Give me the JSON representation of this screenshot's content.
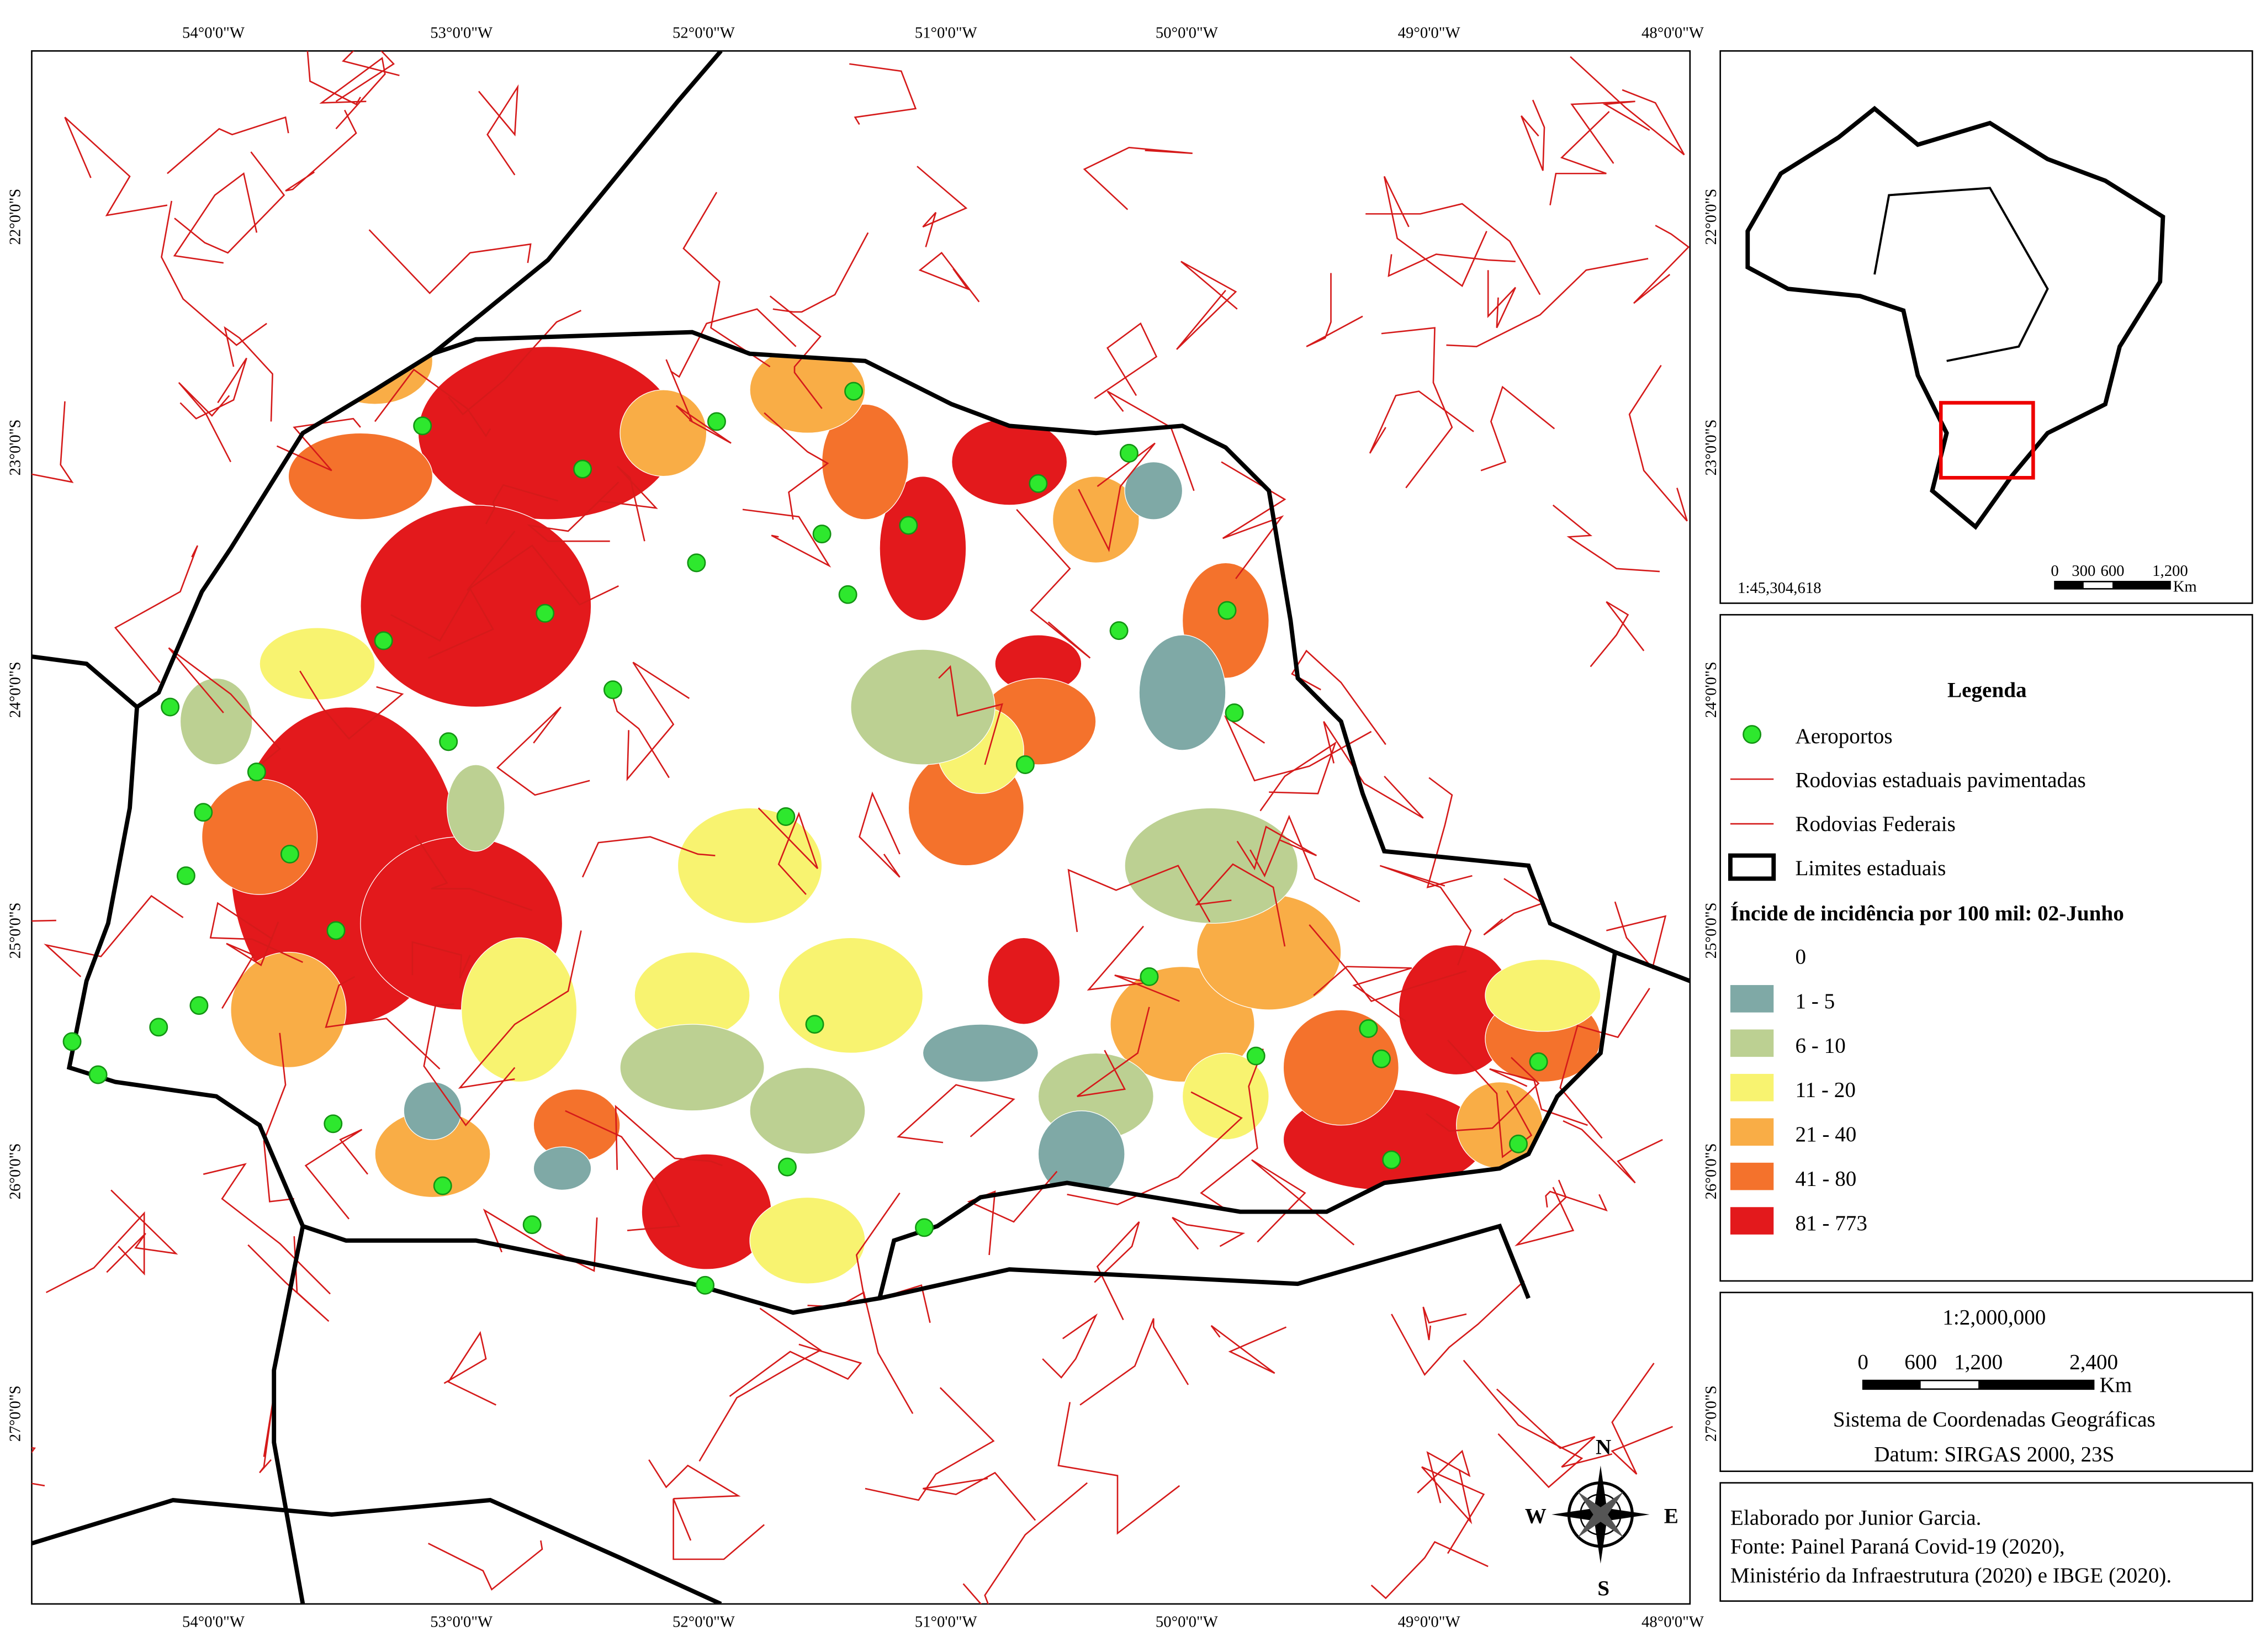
{
  "map": {
    "lon_labels": [
      "54°0'0\"W",
      "53°0'0\"W",
      "52°0'0\"W",
      "51°0'0\"W",
      "50°0'0\"W",
      "49°0'0\"W",
      "48°0'0\"W"
    ],
    "lat_labels": [
      "22°0'0\"S",
      "23°0'0\"S",
      "24°0'0\"S",
      "25°0'0\"S",
      "26°0'0\"S",
      "27°0'0\"S"
    ],
    "compass": {
      "n": "N",
      "s": "S",
      "w": "W",
      "e": "E"
    }
  },
  "inset": {
    "scale_ratio": "1:45,304,618",
    "scale_labels": [
      "0",
      "300",
      "600",
      "1,200"
    ],
    "scale_unit": "Km"
  },
  "legend": {
    "title": "Legenda",
    "items": [
      "Aeroportos",
      "Rodovias estaduais pavimentadas",
      "Rodovias Federais",
      "Limites estaduais"
    ],
    "class_title": "Íncide de incidência por 100 mil: 02-Junho",
    "classes": [
      {
        "label": "0",
        "color": "#ffffff"
      },
      {
        "label": "1 - 5",
        "color": "#7fa9a6"
      },
      {
        "label": "6 - 10",
        "color": "#bcd092"
      },
      {
        "label": "11 - 20",
        "color": "#f8f370"
      },
      {
        "label": "21 - 40",
        "color": "#f9ad46"
      },
      {
        "label": "41 - 80",
        "color": "#f4722c"
      },
      {
        "label": "81 - 773",
        "color": "#e3191c"
      }
    ]
  },
  "scale": {
    "ratio": "1:2,000,000",
    "labels": [
      "0",
      "600",
      "1,200",
      "2,400"
    ],
    "unit": "Km",
    "crs": "Sistema de Coordenadas Geográficas",
    "datum": "Datum: SIRGAS 2000, 23S"
  },
  "credits": [
    "Elaborado por Junior Garcia.",
    "Fonte: Painel Paraná Covid-19 (2020),",
    "Ministério da Infraestrutura (2020) e IBGE (2020)."
  ]
}
